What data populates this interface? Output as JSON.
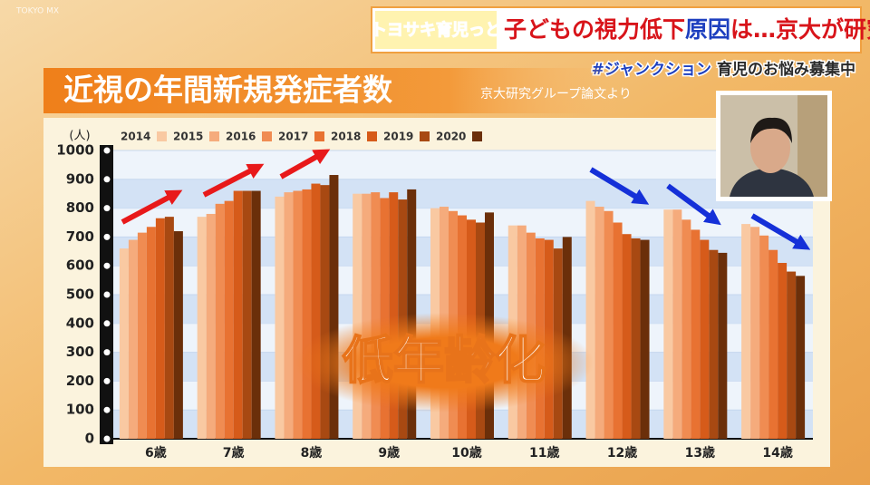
{
  "watermark": "TOKYO MX",
  "header": {
    "logo": "トヨサキ育児っと",
    "headline": [
      "子どもの視力低下",
      "原因",
      "は…京大が研究"
    ],
    "ticker": [
      "#ジャンクション",
      "育児のお悩み募集中"
    ]
  },
  "chart_data": {
    "type": "bar",
    "title": "近視の年間新規発症者数",
    "subtitle": "京大研究グループ論文より",
    "y_label": "(人)",
    "annotation": "低年齢化",
    "categories": [
      "6歳",
      "7歳",
      "8歳",
      "9歳",
      "10歳",
      "11歳",
      "12歳",
      "13歳",
      "14歳"
    ],
    "series": [
      {
        "name": "2014",
        "color": "#f9c9a2",
        "values": [
          660,
          770,
          840,
          850,
          800,
          740,
          825,
          795,
          745
        ]
      },
      {
        "name": "2015",
        "color": "#f5ab7c",
        "values": [
          690,
          780,
          855,
          850,
          805,
          740,
          805,
          795,
          735
        ]
      },
      {
        "name": "2016",
        "color": "#f08c52",
        "values": [
          715,
          815,
          860,
          855,
          790,
          715,
          790,
          760,
          705
        ]
      },
      {
        "name": "2017",
        "color": "#e87232",
        "values": [
          735,
          825,
          865,
          835,
          775,
          695,
          750,
          725,
          655
        ]
      },
      {
        "name": "2018",
        "color": "#d65b1a",
        "values": [
          765,
          860,
          885,
          855,
          760,
          690,
          710,
          690,
          610
        ]
      },
      {
        "name": "2019",
        "color": "#a84912",
        "values": [
          770,
          860,
          880,
          830,
          750,
          660,
          695,
          655,
          580
        ]
      },
      {
        "name": "2020",
        "color": "#6b2f0a",
        "values": [
          720,
          860,
          915,
          865,
          785,
          700,
          690,
          645,
          565
        ]
      }
    ],
    "ylim": [
      0,
      1000
    ],
    "yticks": [
      0,
      100,
      200,
      300,
      400,
      500,
      600,
      700,
      800,
      900,
      1000
    ],
    "grid": true
  }
}
